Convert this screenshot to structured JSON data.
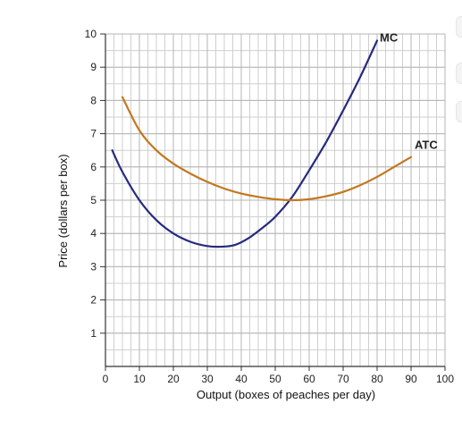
{
  "chart_data": {
    "type": "line",
    "xlabel": "Output (boxes of peaches per day)",
    "ylabel": "Price (dollars per box)",
    "xlim": [
      0,
      100
    ],
    "ylim": [
      0,
      10
    ],
    "x_ticks": [
      0,
      10,
      20,
      30,
      40,
      50,
      60,
      70,
      80,
      90,
      100
    ],
    "y_ticks": [
      1,
      2,
      3,
      4,
      5,
      6,
      7,
      8,
      9,
      10
    ],
    "grid": true,
    "grid_minor_step_x": 2.5,
    "grid_minor_step_y": 0.5,
    "series": [
      {
        "name": "MC",
        "color": "#262a7e",
        "x": [
          2,
          5,
          10,
          15,
          20,
          25,
          30,
          34,
          38,
          42,
          46,
          50,
          55,
          60,
          65,
          70,
          75,
          80
        ],
        "y": [
          6.5,
          5.85,
          5.0,
          4.4,
          4.0,
          3.75,
          3.62,
          3.6,
          3.65,
          3.85,
          4.15,
          4.5,
          5.1,
          5.9,
          6.75,
          7.7,
          8.7,
          9.8
        ]
      },
      {
        "name": "ATC",
        "color": "#c2781e",
        "x": [
          5,
          10,
          15,
          20,
          25,
          30,
          35,
          40,
          45,
          50,
          55,
          60,
          65,
          70,
          75,
          80,
          85,
          90
        ],
        "y": [
          8.1,
          7.1,
          6.5,
          6.1,
          5.8,
          5.55,
          5.35,
          5.2,
          5.1,
          5.03,
          5.0,
          5.03,
          5.12,
          5.25,
          5.45,
          5.7,
          6.0,
          6.3
        ]
      }
    ]
  }
}
